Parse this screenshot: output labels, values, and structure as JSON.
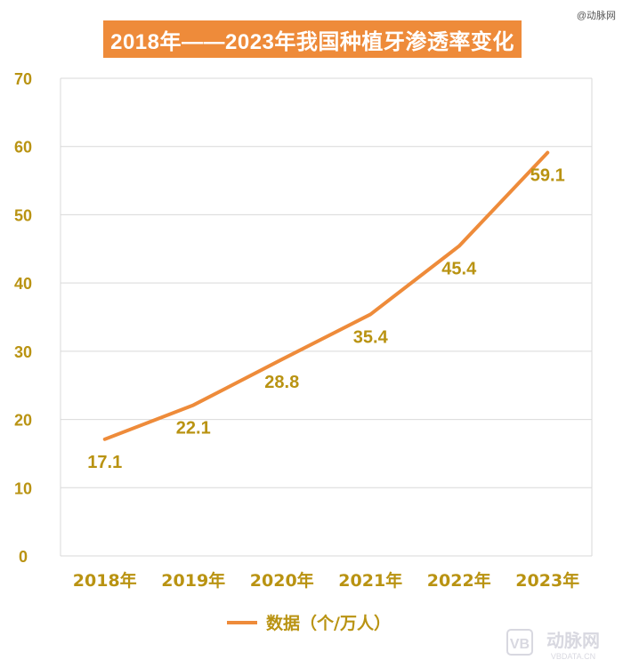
{
  "header": {
    "title": "2018年——2023年我国种植牙渗透率变化",
    "watermark": "@动脉网"
  },
  "footer": {
    "logo_text": "动脉网",
    "logo_sub": "VBDATA.CN"
  },
  "colors": {
    "accent": "#ee8b3a",
    "label": "#b99312",
    "grid": "#d9d9d9",
    "axis_text": "#b99312"
  },
  "chart_data": {
    "type": "line",
    "title": "2018年——2023年我国种植牙渗透率变化",
    "categories": [
      "2018年",
      "2019年",
      "2020年",
      "2021年",
      "2022年",
      "2023年"
    ],
    "series": [
      {
        "name": "数据（个/万人）",
        "values": [
          17.1,
          22.1,
          28.8,
          35.4,
          45.4,
          59.1
        ]
      }
    ],
    "data_labels": [
      "17.1",
      "22.1",
      "28.8",
      "35.4",
      "45.4",
      "59.1"
    ],
    "ylim": [
      0,
      70
    ],
    "yticks": [
      0,
      10,
      20,
      30,
      40,
      50,
      60,
      70
    ],
    "grid": true,
    "legend": "bottom",
    "xlabel": "",
    "ylabel": ""
  }
}
